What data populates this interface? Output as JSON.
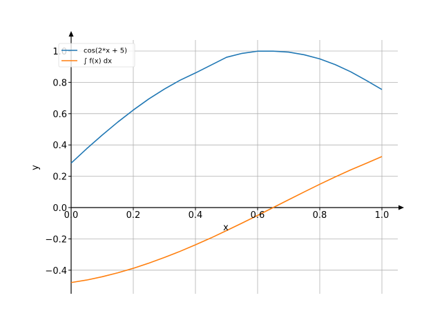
{
  "chart_data": {
    "type": "line",
    "title": "",
    "xlabel": "x",
    "ylabel": "y",
    "xlim": [
      0.0,
      1.0
    ],
    "ylim": [
      -0.55,
      1.05
    ],
    "grid": true,
    "legend_position": "top-left",
    "x_ticks": [
      {
        "value": 0.0,
        "label": "0.0"
      },
      {
        "value": 0.2,
        "label": "0.2"
      },
      {
        "value": 0.4,
        "label": "0.4"
      },
      {
        "value": 0.6,
        "label": "0.6"
      },
      {
        "value": 0.8,
        "label": "0.8"
      },
      {
        "value": 1.0,
        "label": "1.0"
      }
    ],
    "y_ticks": [
      {
        "value": -0.4,
        "label": "−0.4"
      },
      {
        "value": -0.2,
        "label": "−0.2"
      },
      {
        "value": 0.0,
        "label": "0.0"
      },
      {
        "value": 0.2,
        "label": "0.2"
      },
      {
        "value": 0.4,
        "label": "0.4"
      },
      {
        "value": 0.6,
        "label": "0.6"
      },
      {
        "value": 0.8,
        "label": "0.8"
      },
      {
        "value": 1.0,
        "label": "1.0"
      }
    ],
    "series": [
      {
        "name": "cos(2*x + 5)",
        "color": "#1f77b4",
        "x": [
          0.0,
          0.05,
          0.1,
          0.15,
          0.2,
          0.25,
          0.3,
          0.35,
          0.4,
          0.45,
          0.5,
          0.55,
          0.6,
          0.65,
          0.7,
          0.75,
          0.8,
          0.85,
          0.9,
          0.95,
          1.0
        ],
        "y": [
          0.284,
          0.376,
          0.463,
          0.546,
          0.623,
          0.694,
          0.757,
          0.813,
          0.86,
          0.91,
          0.96,
          0.985,
          0.999,
          0.999,
          0.993,
          0.976,
          0.95,
          0.913,
          0.867,
          0.812,
          0.754
        ]
      },
      {
        "name": "∫ f(x) dx",
        "color": "#ff7f0e",
        "x": [
          0.0,
          0.05,
          0.1,
          0.15,
          0.2,
          0.25,
          0.3,
          0.35,
          0.4,
          0.45,
          0.5,
          0.55,
          0.6,
          0.65,
          0.7,
          0.75,
          0.8,
          0.85,
          0.9,
          0.95,
          1.0
        ],
        "y": [
          -0.479,
          -0.463,
          -0.442,
          -0.417,
          -0.388,
          -0.355,
          -0.319,
          -0.28,
          -0.238,
          -0.194,
          -0.147,
          -0.099,
          -0.05,
          0.0,
          0.05,
          0.1,
          0.149,
          0.196,
          0.241,
          0.283,
          0.326
        ]
      }
    ]
  }
}
